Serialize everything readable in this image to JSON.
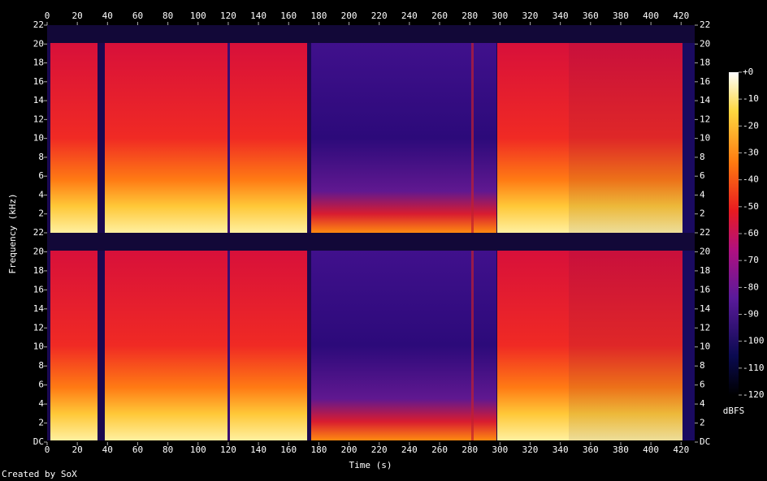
{
  "chart_data": [
    {
      "type": "heatmap",
      "y_label": "Frequency (kHz)",
      "xlim": [
        0,
        429
      ],
      "xticks": [
        0,
        20,
        40,
        60,
        80,
        100,
        120,
        140,
        160,
        180,
        200,
        220,
        240,
        260,
        280,
        300,
        320,
        340,
        360,
        380,
        400,
        420
      ],
      "ylim": [
        0,
        22
      ],
      "yticks": [
        2,
        4,
        6,
        8,
        10,
        12,
        14,
        16,
        18,
        20,
        22
      ],
      "colorbar": {
        "label": "dBFS",
        "zlim": [
          -120,
          0
        ],
        "zticks": [
          {
            "value": 0,
            "label": "+0"
          },
          -10,
          -20,
          -30,
          -40,
          -50,
          -60,
          -70,
          -80,
          -90,
          -100,
          -110,
          -120
        ]
      }
    },
    {
      "type": "heatmap",
      "x_label": "Time (s)",
      "xlim": [
        0,
        429
      ],
      "xticks": [
        0,
        20,
        40,
        60,
        80,
        100,
        120,
        140,
        160,
        180,
        200,
        220,
        240,
        260,
        280,
        300,
        320,
        340,
        360,
        380,
        400,
        420
      ],
      "ylim": [
        0,
        22
      ],
      "yticks": [
        {
          "value": 0,
          "label": "DC"
        },
        2,
        4,
        6,
        8,
        10,
        12,
        14,
        16,
        18,
        20,
        22
      ]
    }
  ],
  "footer": "Created by SoX"
}
